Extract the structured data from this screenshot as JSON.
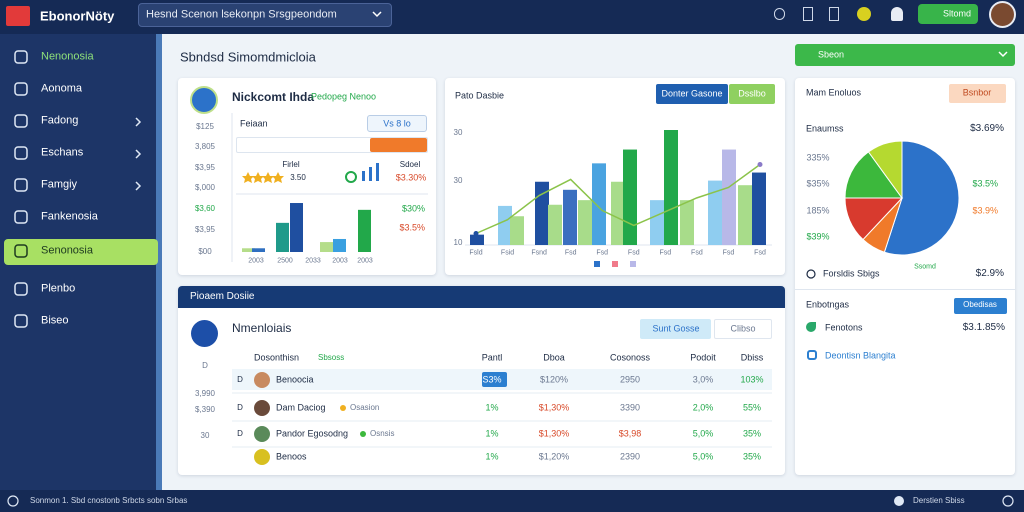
{
  "app": {
    "brand": "EbonorNöty",
    "search": "Hesnd Scenon lsekonpn Srsgpeondom",
    "action": "Sltomd"
  },
  "sidebar": [
    "Nenonosia",
    "Aonoma",
    "Fadong",
    "Eschans",
    "Famgiy",
    "Fankenosia",
    "Senonosia",
    "Plenbo",
    "Biseo"
  ],
  "page_title": "Sbndsd Simomdmicloia",
  "summary": {
    "title": "Nickcomt Ihda",
    "tag": "Pedopeg Nenoo",
    "header": "Feiaan",
    "filter": "Vs 8 lo",
    "rating_label": "Firlel",
    "rating": "3.50",
    "score_label": "Sdoel",
    "score": "$3.30%",
    "gain": "$30%",
    "loss": "$3.5%",
    "axis": [
      "$125",
      "3,805",
      "$3,95",
      "$,000",
      "$3,60",
      "$3,95",
      "$00"
    ],
    "x_labels": [
      "2003",
      "2500",
      "2033",
      "2003",
      "2003"
    ],
    "chart": {
      "type": "bar",
      "ylim": [
        0,
        100
      ],
      "values": [
        6,
        6,
        47,
        79,
        16,
        21,
        68
      ],
      "colors": [
        "#b5dd8a",
        "#2f6fc0",
        "#1f9a8a",
        "#1f4fa0",
        "#b5dd8a",
        "#3aa0e0",
        "#22a84a"
      ]
    }
  },
  "trend": {
    "title": "Pato Dasbie",
    "primary": "Donter Gasone",
    "secondary": "Dsslbo",
    "axis": [
      "30",
      "30",
      "10"
    ],
    "x_labels": [
      "Fsld",
      "Fsid",
      "Fsnd",
      "Fsd",
      "Fsd",
      "Fsd",
      "Fsd",
      "Fsd",
      "Fsd",
      "Fsd"
    ],
    "chart": {
      "type": "bar",
      "ylim": [
        0,
        100
      ],
      "values": [
        9,
        34,
        25,
        55,
        35,
        48,
        39,
        71,
        55,
        83,
        39,
        100,
        39,
        56,
        83,
        52,
        63
      ],
      "colors": [
        "#1f4fa0",
        "#8fcdf0",
        "#a8dc8a",
        "#1f4fa0",
        "#a8dc8a",
        "#3a6fc0",
        "#a8dc8a",
        "#4aa3e0",
        "#a8dc8a",
        "#22a84a",
        "#8fcdf0",
        "#22a84a",
        "#a8dc8a",
        "#8fcdf0",
        "#b8b8e8",
        "#a8dc8a",
        "#1f4fa0"
      ],
      "line": {
        "color": "#8bc34a",
        "values": [
          10,
          22,
          43,
          57,
          30,
          17,
          29,
          41,
          50,
          70
        ]
      }
    }
  },
  "breakdown": {
    "menu": "Sbeon",
    "title": "Mam Enoluos",
    "button": "Bsnbor",
    "label": "Enaumss",
    "total": "$3.69%",
    "labels": [
      "335%",
      "$35%",
      "185%",
      "$39%",
      "$3.5%",
      "$3.9%"
    ],
    "footer": "Forsldis Sbigs",
    "footer_tag": "Ssomd",
    "footer_value": "$2.9%",
    "chart": {
      "type": "pie",
      "values": [
        55,
        7,
        13,
        15,
        10
      ],
      "colors": [
        "#2c72c9",
        "#f07a2a",
        "#d83a2e",
        "#3cb83c",
        "#b5d930"
      ]
    },
    "section": "Enbotngas",
    "section_button": "Obedisas",
    "item": "Fenotons",
    "item_value": "$3.1.85%",
    "link": "Deontisn Blangita"
  },
  "table": {
    "banner": "Pioaem Dosiie",
    "title": "Nmenloiais",
    "buttons": [
      "Sunt Gosse",
      "Clibso"
    ],
    "columns": [
      "Dosonthisn",
      "Pantl",
      "Dboa",
      "Cosonoss",
      "Podoit",
      "Dbiss"
    ],
    "column_tag": "Sbsoss",
    "side": [
      "D",
      "3,990",
      "$,390",
      "30"
    ],
    "rows": [
      [
        "Benoocia",
        "S3%",
        "$120%",
        "2950",
        "3,0%",
        "103%"
      ],
      [
        "Dam Daciog",
        "1%",
        "$1,30%",
        "3390",
        "2,0%",
        "55%"
      ],
      [
        "Pandor Egosodng",
        "1%",
        "$1,30%",
        "$3,98",
        "5,0%",
        "35%"
      ],
      [
        "Benoos",
        "1%",
        "$1,20%",
        "2390",
        "5,0%",
        "35%"
      ]
    ],
    "row_tags": [
      "Osasion",
      "Osnsis"
    ]
  },
  "status": {
    "left": "Sonmon 1. Sbd cnostonb Srbcts sobn Srbas",
    "right": "Derstien Sbiss"
  }
}
